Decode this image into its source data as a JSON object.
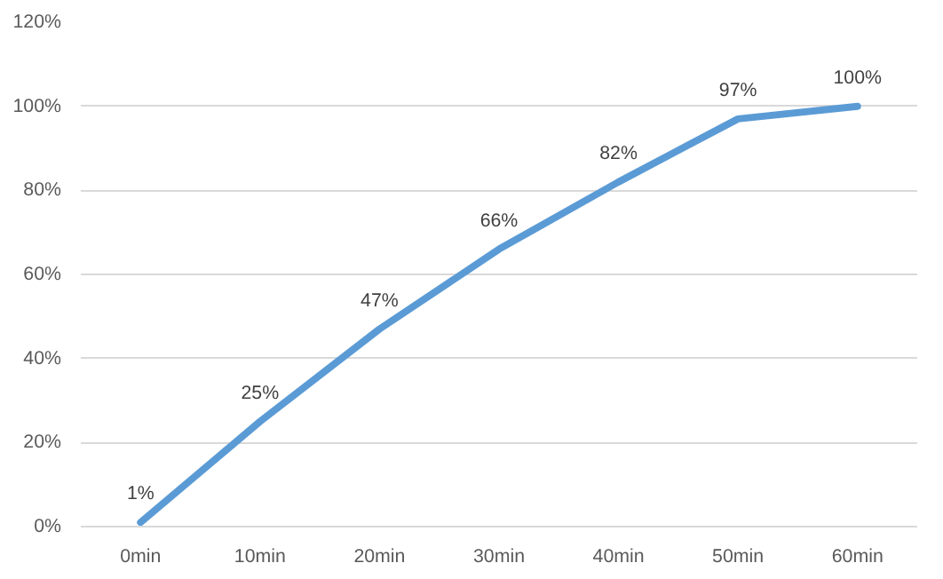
{
  "chart_data": {
    "type": "line",
    "categories": [
      "0min",
      "10min",
      "20min",
      "30min",
      "40min",
      "50min",
      "60min"
    ],
    "values": [
      1,
      25,
      47,
      66,
      82,
      97,
      100
    ],
    "color": "#5b9bd5",
    "ylim": [
      0,
      120
    ],
    "yticks": [
      {
        "value": 0,
        "label": "0%"
      },
      {
        "value": 20,
        "label": "20%"
      },
      {
        "value": 40,
        "label": "40%"
      },
      {
        "value": 60,
        "label": "60%"
      },
      {
        "value": 80,
        "label": "80%"
      },
      {
        "value": 100,
        "label": "100%"
      },
      {
        "value": 120,
        "label": "120%"
      }
    ],
    "value_labels": [
      "1%",
      "25%",
      "47%",
      "66%",
      "82%",
      "97%",
      "100%"
    ],
    "grid": "y",
    "marker": "none",
    "line_style": "solid"
  }
}
